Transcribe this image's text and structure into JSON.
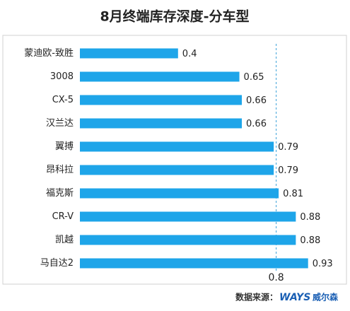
{
  "chart_data": {
    "type": "hbar",
    "title": "8月终端库存深度-分车型",
    "categories": [
      "蒙迪欧-致胜",
      "3008",
      "CX-5",
      "汉兰达",
      "翼搏",
      "昂科拉",
      "福克斯",
      "CR-V",
      "凯越",
      "马自达2"
    ],
    "values": [
      0.4,
      0.65,
      0.66,
      0.66,
      0.79,
      0.79,
      0.81,
      0.88,
      0.88,
      0.93
    ],
    "color": "#1ea5e9",
    "xlim": [
      0,
      1
    ],
    "reference_line": 0.8,
    "source_label": "数据来源：",
    "source_brand": "WAYS",
    "source_name": "威尔森"
  }
}
